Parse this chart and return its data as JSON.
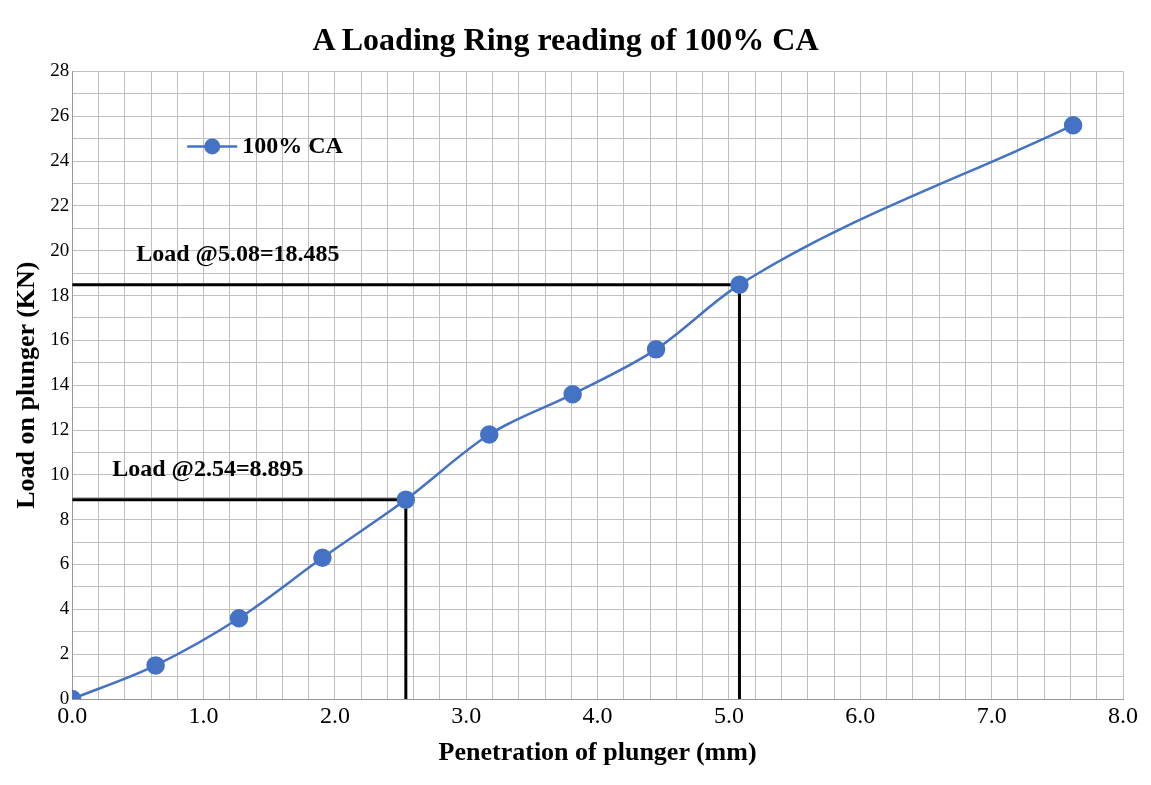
{
  "chart_data": {
    "type": "line",
    "title": "A Loading Ring reading of 100% CA",
    "xlabel": "Penetration of plunger (mm)",
    "ylabel": "Load on plunger (KN)",
    "series": [
      {
        "name": "100% CA",
        "color": "#4472c4",
        "marker": "circle",
        "x": [
          0,
          0.635,
          1.27,
          1.905,
          2.54,
          3.175,
          3.81,
          4.445,
          5.08,
          7.62
        ],
        "values": [
          0,
          1.5,
          3.6,
          6.3,
          8.895,
          11.8,
          13.6,
          15.6,
          18.485,
          25.6
        ]
      },
      {
        "color": "#000000",
        "marker": "none",
        "x": [
          0,
          2.54,
          2.54
        ],
        "values": [
          8.895,
          8.895,
          0
        ]
      },
      {
        "color": "#000000",
        "marker": "none",
        "x": [
          0,
          5.08,
          5.08
        ],
        "values": [
          18.485,
          18.485,
          0
        ]
      }
    ],
    "annotations": [
      "Load @2.54=8.895",
      "Load @5.08=18.485"
    ],
    "xlim": [
      0,
      8
    ],
    "ylim": [
      0,
      28
    ],
    "xticks": [
      {
        "value": 0,
        "label": "0.0"
      },
      {
        "value": 0.2,
        "label": null
      },
      {
        "value": 0.4,
        "label": null
      },
      {
        "value": 0.6,
        "label": null
      },
      {
        "value": 0.8,
        "label": null
      },
      {
        "value": 1,
        "label": "1.0"
      },
      {
        "value": 1.2,
        "label": null
      },
      {
        "value": 1.4,
        "label": null
      },
      {
        "value": 1.6,
        "label": null
      },
      {
        "value": 1.8,
        "label": null
      },
      {
        "value": 2,
        "label": "2.0"
      },
      {
        "value": 2.2,
        "label": null
      },
      {
        "value": 2.4,
        "label": null
      },
      {
        "value": 2.6,
        "label": null
      },
      {
        "value": 2.8,
        "label": null
      },
      {
        "value": 3,
        "label": "3.0"
      },
      {
        "value": 3.2,
        "label": null
      },
      {
        "value": 3.4,
        "label": null
      },
      {
        "value": 3.6,
        "label": null
      },
      {
        "value": 3.8,
        "label": null
      },
      {
        "value": 4,
        "label": "4.0"
      },
      {
        "value": 4.2,
        "label": null
      },
      {
        "value": 4.4,
        "label": null
      },
      {
        "value": 4.6,
        "label": null
      },
      {
        "value": 4.8,
        "label": null
      },
      {
        "value": 5,
        "label": "5.0"
      },
      {
        "value": 5.2,
        "label": null
      },
      {
        "value": 5.4,
        "label": null
      },
      {
        "value": 5.6,
        "label": null
      },
      {
        "value": 5.8,
        "label": null
      },
      {
        "value": 6,
        "label": "6.0"
      },
      {
        "value": 6.2,
        "label": null
      },
      {
        "value": 6.4,
        "label": null
      },
      {
        "value": 6.6,
        "label": null
      },
      {
        "value": 6.8,
        "label": null
      },
      {
        "value": 7,
        "label": "7.0"
      },
      {
        "value": 7.2,
        "label": null
      },
      {
        "value": 7.4,
        "label": null
      },
      {
        "value": 7.6,
        "label": null
      },
      {
        "value": 7.8,
        "label": null
      },
      {
        "value": 8,
        "label": "8.0"
      }
    ],
    "yticks": [
      0,
      {
        "value": 1,
        "label": null
      },
      2,
      {
        "value": 3,
        "label": null
      },
      4,
      {
        "value": 5,
        "label": null
      },
      6,
      {
        "value": 7,
        "label": null
      },
      8,
      {
        "value": 9,
        "label": null
      },
      10,
      {
        "value": 11,
        "label": null
      },
      12,
      {
        "value": 13,
        "label": null
      },
      14,
      {
        "value": 15,
        "label": null
      },
      16,
      {
        "value": 17,
        "label": null
      },
      18,
      {
        "value": 19,
        "label": null
      },
      20,
      {
        "value": 21,
        "label": null
      },
      22,
      {
        "value": 23,
        "label": null
      },
      24,
      {
        "value": 25,
        "label": null
      },
      26,
      {
        "value": 27,
        "label": null
      },
      28
    ],
    "grid": true,
    "legend": "top left"
  }
}
